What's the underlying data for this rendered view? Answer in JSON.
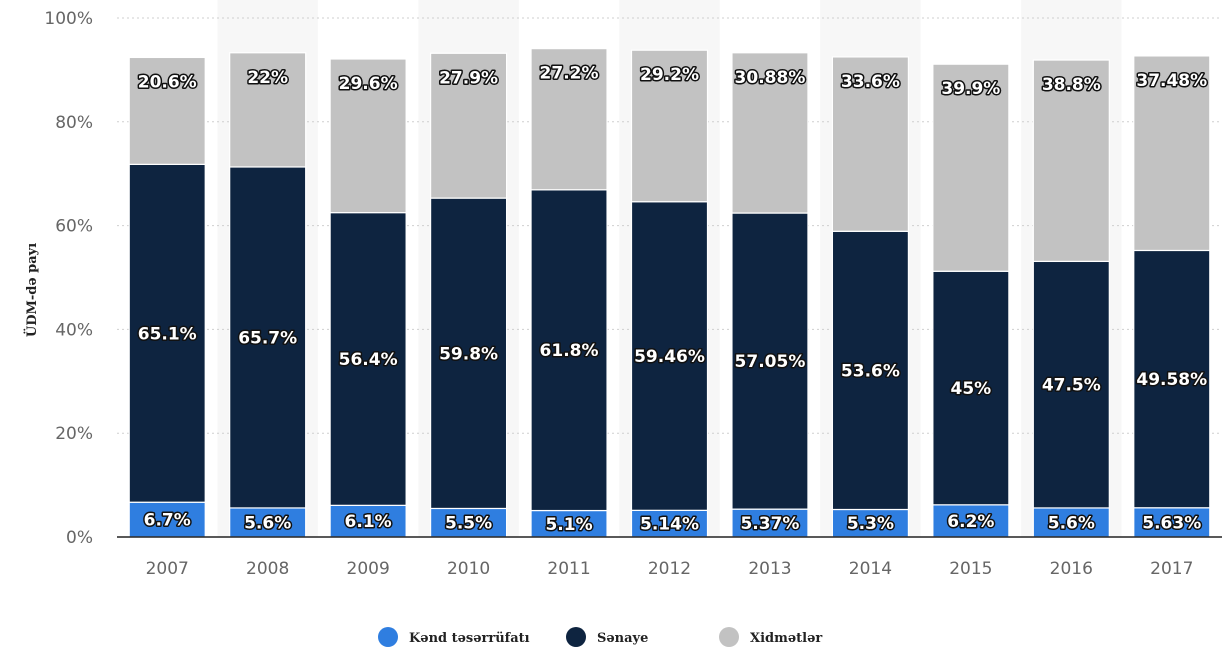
{
  "chart_data": {
    "type": "bar",
    "stacked": true,
    "categories": [
      "2007",
      "2008",
      "2009",
      "2010",
      "2011",
      "2012",
      "2013",
      "2014",
      "2015",
      "2016",
      "2017"
    ],
    "series": [
      {
        "name": "Kənd təsərrüfatı",
        "color": "#2f7ee0",
        "values": [
          6.7,
          5.6,
          6.1,
          5.5,
          5.1,
          5.14,
          5.37,
          5.3,
          6.2,
          5.6,
          5.63
        ],
        "labels": [
          "6.7%",
          "5.6%",
          "6.1%",
          "5.5%",
          "5.1%",
          "5.14%",
          "5.37%",
          "5.3%",
          "6.2%",
          "5.6%",
          "5.63%"
        ]
      },
      {
        "name": "Sənaye",
        "color": "#0e2440",
        "values": [
          65.1,
          65.7,
          56.4,
          59.8,
          61.8,
          59.46,
          57.05,
          53.6,
          45,
          47.5,
          49.58
        ],
        "labels": [
          "65.1%",
          "65.7%",
          "56.4%",
          "59.8%",
          "61.8%",
          "59.46%",
          "57.05%",
          "53.6%",
          "45%",
          "47.5%",
          "49.58%"
        ]
      },
      {
        "name": "Xidmətlər",
        "color": "#c2c2c2",
        "values": [
          20.6,
          22,
          29.6,
          27.9,
          27.2,
          29.2,
          30.88,
          33.6,
          39.9,
          38.8,
          37.48
        ],
        "labels": [
          "20.6%",
          "22%",
          "29.6%",
          "27.9%",
          "27.2%",
          "29.2%",
          "30.88%",
          "33.6%",
          "39.9%",
          "38.8%",
          "37.48%"
        ]
      }
    ],
    "ylabel": "ÜDM-də payı",
    "xlabel": "",
    "ylim": [
      0,
      100
    ],
    "y_ticks": [
      "0%",
      "20%",
      "40%",
      "60%",
      "80%",
      "100%"
    ],
    "grid": true,
    "legend_position": "bottom"
  }
}
